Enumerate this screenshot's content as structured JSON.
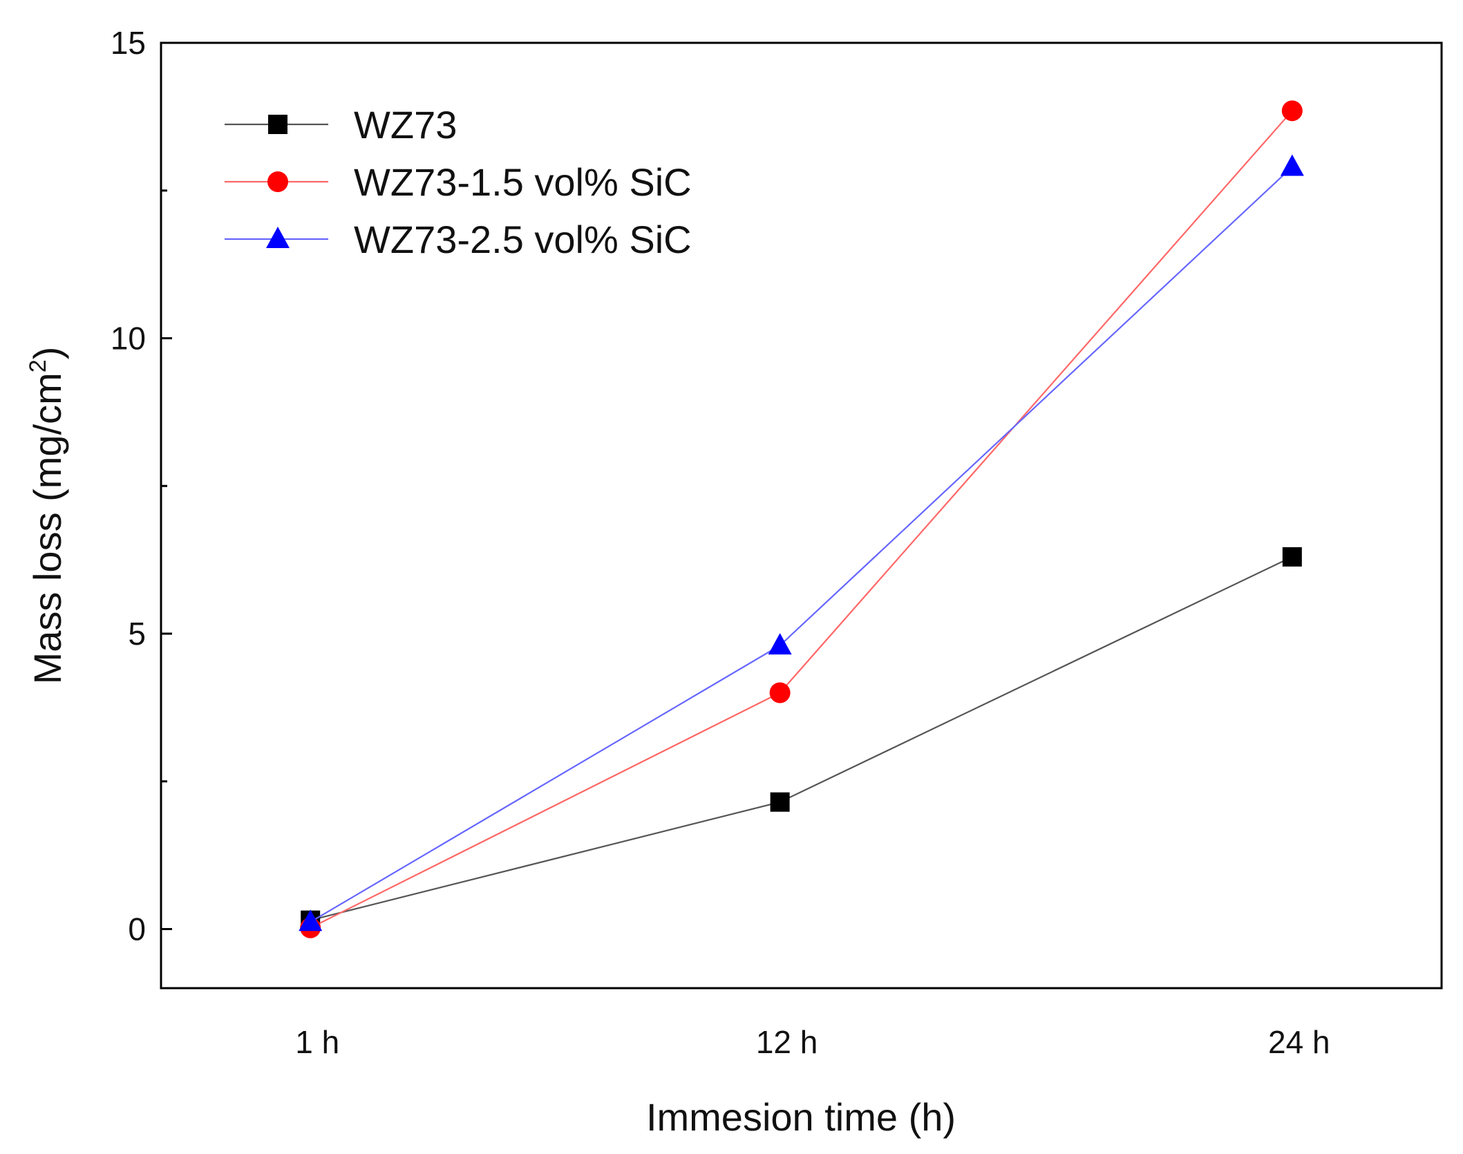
{
  "chart_data": {
    "type": "line",
    "title": "",
    "xlabel": "Immesion time (h)",
    "ylabel": "Mass loss (mg/cm",
    "ylabel_sup": "2",
    "ylabel_close": ")",
    "categories": [
      "1 h",
      "12 h",
      "24 h"
    ],
    "x": [
      1,
      12,
      24
    ],
    "xlim": [
      -2.5,
      27.5
    ],
    "ylim": [
      -1,
      15
    ],
    "yticks": [
      0,
      5,
      10,
      15
    ],
    "ytick_labels": [
      "0",
      "5",
      "10",
      "15"
    ],
    "grid": false,
    "legend_position": "top-left",
    "series": [
      {
        "name": "WZ73",
        "values": [
          0.15,
          2.15,
          6.3
        ],
        "color": "#000000",
        "line_color": "#555555",
        "marker": "square"
      },
      {
        "name": "WZ73-1.5 vol% SiC",
        "values": [
          0.02,
          4.0,
          13.85
        ],
        "color": "#ff0000",
        "line_color": "#ff6666",
        "marker": "circle"
      },
      {
        "name": "WZ73-2.5 vol% SiC",
        "values": [
          0.12,
          4.8,
          12.9
        ],
        "color": "#0000ff",
        "line_color": "#6666ff",
        "marker": "triangle"
      }
    ]
  }
}
